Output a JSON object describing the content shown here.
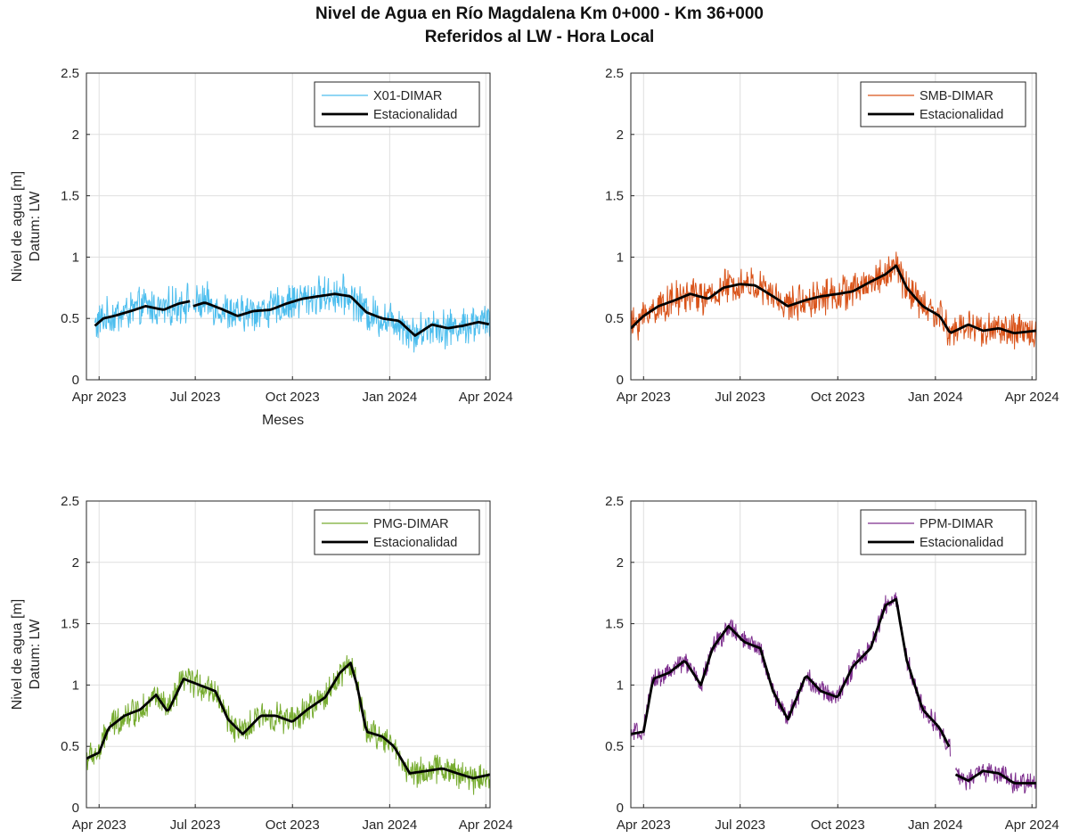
{
  "figure": {
    "title_line1": "Nivel de Agua en Río Magdalena Km 0+000 - Km 36+000",
    "title_line2": "Referidos al LW - Hora Local",
    "colors": {
      "X01": "#4dbeee",
      "SMB": "#d95319",
      "PMG": "#77ac30",
      "PPM": "#7e2f8e",
      "seasonal": "#000000"
    }
  },
  "chart_data": [
    {
      "type": "line",
      "ylabel": "Nivel de agua [m]",
      "ylabel2": "Datum: LW",
      "xlabel": "Meses",
      "x_ticks": [
        "Apr 2023",
        "Jul 2023",
        "Oct 2023",
        "Jan 2024",
        "Apr 2024"
      ],
      "x_tick_dates": [
        "2023-04-01",
        "2023-07-01",
        "2023-10-01",
        "2024-01-01",
        "2024-04-01"
      ],
      "xlim": [
        "2023-03-20",
        "2024-04-05"
      ],
      "y_ticks": [
        "0",
        "0.5",
        "1",
        "1.5",
        "2",
        "2.5"
      ],
      "ylim": [
        0,
        2.5
      ],
      "grid": true,
      "legend_position": "top-right",
      "series": [
        {
          "name": "X01-DIMAR",
          "color": "#4dbeee",
          "band": 0.13,
          "x": [
            "2023-03-28",
            "2023-04-05",
            "2023-04-15",
            "2023-05-01",
            "2023-05-15",
            "2023-06-01",
            "2023-06-15",
            "2023-06-26"
          ],
          "y": [
            0.44,
            0.5,
            0.52,
            0.56,
            0.6,
            0.57,
            0.62,
            0.64
          ],
          "x2": [
            "2023-06-29",
            "2023-07-10",
            "2023-07-25",
            "2023-08-10",
            "2023-08-25",
            "2023-09-10",
            "2023-09-25",
            "2023-10-10",
            "2023-10-25",
            "2023-11-10",
            "2023-11-25",
            "2023-12-10",
            "2023-12-25",
            "2024-01-10",
            "2024-01-25",
            "2024-02-10",
            "2024-02-25",
            "2024-03-10",
            "2024-03-25",
            "2024-04-05"
          ],
          "y2": [
            0.6,
            0.63,
            0.58,
            0.52,
            0.56,
            0.57,
            0.62,
            0.66,
            0.68,
            0.7,
            0.68,
            0.55,
            0.5,
            0.48,
            0.36,
            0.45,
            0.42,
            0.44,
            0.47,
            0.45
          ]
        },
        {
          "name": "Estacionalidad",
          "color": "#000000",
          "x": [
            "2023-03-28",
            "2023-04-05",
            "2023-04-15",
            "2023-05-01",
            "2023-05-15",
            "2023-06-01",
            "2023-06-15",
            "2023-06-26"
          ],
          "y": [
            0.44,
            0.5,
            0.52,
            0.56,
            0.6,
            0.57,
            0.62,
            0.64
          ],
          "x2": [
            "2023-06-29",
            "2023-07-10",
            "2023-07-25",
            "2023-08-10",
            "2023-08-25",
            "2023-09-10",
            "2023-09-25",
            "2023-10-10",
            "2023-10-25",
            "2023-11-10",
            "2023-11-25",
            "2023-12-10",
            "2023-12-25",
            "2024-01-10",
            "2024-01-25",
            "2024-02-10",
            "2024-02-25",
            "2024-03-10",
            "2024-03-25",
            "2024-04-05"
          ],
          "y2": [
            0.6,
            0.63,
            0.58,
            0.52,
            0.56,
            0.57,
            0.62,
            0.66,
            0.68,
            0.7,
            0.68,
            0.55,
            0.5,
            0.48,
            0.36,
            0.45,
            0.42,
            0.44,
            0.47,
            0.45
          ]
        }
      ]
    },
    {
      "type": "line",
      "ylabel": "",
      "ylabel2": "",
      "xlabel": "",
      "x_ticks": [
        "Apr 2023",
        "Jul 2023",
        "Oct 2023",
        "Jan 2024",
        "Apr 2024"
      ],
      "x_tick_dates": [
        "2023-04-01",
        "2023-07-01",
        "2023-10-01",
        "2024-01-01",
        "2024-04-01"
      ],
      "xlim": [
        "2023-03-20",
        "2024-04-05"
      ],
      "y_ticks": [
        "0",
        "0.5",
        "1",
        "1.5",
        "2",
        "2.5"
      ],
      "ylim": [
        0,
        2.5
      ],
      "grid": true,
      "legend_position": "top-right",
      "series": [
        {
          "name": "SMB-DIMAR",
          "color": "#d95319",
          "band": 0.12,
          "x": [
            "2023-03-20",
            "2023-04-01",
            "2023-04-15",
            "2023-05-01",
            "2023-05-15",
            "2023-06-01",
            "2023-06-15",
            "2023-07-01",
            "2023-07-15",
            "2023-08-01",
            "2023-08-15",
            "2023-09-01",
            "2023-09-15",
            "2023-10-01",
            "2023-10-15",
            "2023-11-01",
            "2023-11-15",
            "2023-11-25",
            "2023-12-05",
            "2023-12-20",
            "2024-01-05",
            "2024-01-15",
            "2024-02-01",
            "2024-02-15",
            "2024-03-01",
            "2024-03-15",
            "2024-04-05"
          ],
          "y": [
            0.42,
            0.52,
            0.6,
            0.65,
            0.7,
            0.66,
            0.75,
            0.78,
            0.77,
            0.68,
            0.6,
            0.65,
            0.68,
            0.7,
            0.72,
            0.8,
            0.86,
            0.93,
            0.75,
            0.6,
            0.52,
            0.38,
            0.45,
            0.4,
            0.42,
            0.38,
            0.4
          ]
        },
        {
          "name": "Estacionalidad",
          "color": "#000000",
          "x": [
            "2023-03-20",
            "2023-04-01",
            "2023-04-15",
            "2023-05-01",
            "2023-05-15",
            "2023-06-01",
            "2023-06-15",
            "2023-07-01",
            "2023-07-15",
            "2023-08-01",
            "2023-08-15",
            "2023-09-01",
            "2023-09-15",
            "2023-10-01",
            "2023-10-15",
            "2023-11-01",
            "2023-11-15",
            "2023-11-25",
            "2023-12-05",
            "2023-12-20",
            "2024-01-05",
            "2024-01-15",
            "2024-02-01",
            "2024-02-15",
            "2024-03-01",
            "2024-03-15",
            "2024-04-05"
          ],
          "y": [
            0.42,
            0.52,
            0.6,
            0.65,
            0.7,
            0.66,
            0.75,
            0.78,
            0.77,
            0.68,
            0.6,
            0.65,
            0.68,
            0.7,
            0.72,
            0.8,
            0.86,
            0.93,
            0.75,
            0.6,
            0.52,
            0.38,
            0.45,
            0.4,
            0.42,
            0.38,
            0.4
          ]
        }
      ]
    },
    {
      "type": "line",
      "ylabel": "Nivel de agua [m]",
      "ylabel2": "Datum: LW",
      "xlabel": "",
      "x_ticks": [
        "Apr 2023",
        "Jul 2023",
        "Oct 2023",
        "Jan 2024",
        "Apr 2024"
      ],
      "x_tick_dates": [
        "2023-04-01",
        "2023-07-01",
        "2023-10-01",
        "2024-01-01",
        "2024-04-01"
      ],
      "xlim": [
        "2023-03-20",
        "2024-04-05"
      ],
      "y_ticks": [
        "0",
        "0.5",
        "1",
        "1.5",
        "2",
        "2.5"
      ],
      "ylim": [
        0,
        2.5
      ],
      "grid": true,
      "legend_position": "top-right",
      "series": [
        {
          "name": "PMG-DIMAR",
          "color": "#77ac30",
          "band": 0.1,
          "x": [
            "2023-03-20",
            "2023-04-01",
            "2023-04-10",
            "2023-04-25",
            "2023-05-10",
            "2023-05-25",
            "2023-06-05",
            "2023-06-20",
            "2023-07-05",
            "2023-07-20",
            "2023-08-01",
            "2023-08-15",
            "2023-09-01",
            "2023-09-15",
            "2023-10-01",
            "2023-10-15",
            "2023-11-01",
            "2023-11-15",
            "2023-11-25",
            "2023-12-01",
            "2023-12-10",
            "2023-12-25",
            "2024-01-05",
            "2024-01-20",
            "2024-02-05",
            "2024-02-20",
            "2024-03-05",
            "2024-03-20",
            "2024-04-05"
          ],
          "y": [
            0.4,
            0.45,
            0.65,
            0.75,
            0.8,
            0.92,
            0.78,
            1.05,
            1.0,
            0.95,
            0.72,
            0.6,
            0.75,
            0.75,
            0.7,
            0.8,
            0.9,
            1.1,
            1.18,
            1.0,
            0.62,
            0.58,
            0.5,
            0.28,
            0.3,
            0.32,
            0.28,
            0.24,
            0.27
          ]
        },
        {
          "name": "Estacionalidad",
          "color": "#000000",
          "x": [
            "2023-03-20",
            "2023-04-01",
            "2023-04-10",
            "2023-04-25",
            "2023-05-10",
            "2023-05-25",
            "2023-06-05",
            "2023-06-20",
            "2023-07-05",
            "2023-07-20",
            "2023-08-01",
            "2023-08-15",
            "2023-09-01",
            "2023-09-15",
            "2023-10-01",
            "2023-10-15",
            "2023-11-01",
            "2023-11-15",
            "2023-11-25",
            "2023-12-01",
            "2023-12-10",
            "2023-12-25",
            "2024-01-05",
            "2024-01-20",
            "2024-02-05",
            "2024-02-20",
            "2024-03-05",
            "2024-03-20",
            "2024-04-05"
          ],
          "y": [
            0.4,
            0.45,
            0.65,
            0.75,
            0.8,
            0.92,
            0.78,
            1.05,
            1.0,
            0.95,
            0.72,
            0.6,
            0.75,
            0.75,
            0.7,
            0.8,
            0.9,
            1.1,
            1.18,
            1.0,
            0.62,
            0.58,
            0.5,
            0.28,
            0.3,
            0.32,
            0.28,
            0.24,
            0.27
          ]
        }
      ]
    },
    {
      "type": "line",
      "ylabel": "",
      "ylabel2": "",
      "xlabel": "",
      "x_ticks": [
        "Apr 2023",
        "Jul 2023",
        "Oct 2023",
        "Jan 2024",
        "Apr 2024"
      ],
      "x_tick_dates": [
        "2023-04-01",
        "2023-07-01",
        "2023-10-01",
        "2024-01-01",
        "2024-04-01"
      ],
      "xlim": [
        "2023-03-20",
        "2024-04-05"
      ],
      "y_ticks": [
        "0",
        "0.5",
        "1",
        "1.5",
        "2",
        "2.5"
      ],
      "ylim": [
        0,
        2.5
      ],
      "grid": true,
      "legend_position": "top-right",
      "series": [
        {
          "name": "PPM-DIMAR",
          "color": "#7e2f8e",
          "band": 0.07,
          "x": [
            "2023-03-20",
            "2023-04-01",
            "2023-04-10",
            "2023-04-25",
            "2023-05-10",
            "2023-05-25",
            "2023-06-05",
            "2023-06-20",
            "2023-07-05",
            "2023-07-20",
            "2023-08-01",
            "2023-08-15",
            "2023-09-01",
            "2023-09-15",
            "2023-10-01",
            "2023-10-15",
            "2023-11-01",
            "2023-11-15",
            "2023-11-25",
            "2023-12-05",
            "2023-12-20",
            "2024-01-05",
            "2024-01-15"
          ],
          "y": [
            0.6,
            0.62,
            1.05,
            1.1,
            1.2,
            1.0,
            1.3,
            1.48,
            1.35,
            1.3,
            0.95,
            0.72,
            1.08,
            0.95,
            0.9,
            1.15,
            1.3,
            1.65,
            1.7,
            1.2,
            0.8,
            0.65,
            0.48
          ],
          "x2": [
            "2024-01-20",
            "2024-02-01",
            "2024-02-15",
            "2024-03-01",
            "2024-03-15",
            "2024-04-05"
          ],
          "y2": [
            0.27,
            0.22,
            0.3,
            0.28,
            0.2,
            0.2
          ]
        },
        {
          "name": "Estacionalidad",
          "color": "#000000",
          "x": [
            "2023-03-20",
            "2023-04-01",
            "2023-04-10",
            "2023-04-25",
            "2023-05-10",
            "2023-05-25",
            "2023-06-05",
            "2023-06-20",
            "2023-07-05",
            "2023-07-20",
            "2023-08-01",
            "2023-08-15",
            "2023-09-01",
            "2023-09-15",
            "2023-10-01",
            "2023-10-15",
            "2023-11-01",
            "2023-11-15",
            "2023-11-25",
            "2023-12-05",
            "2023-12-20",
            "2024-01-05",
            "2024-01-15"
          ],
          "y": [
            0.6,
            0.62,
            1.05,
            1.1,
            1.2,
            1.0,
            1.3,
            1.48,
            1.35,
            1.3,
            0.95,
            0.72,
            1.08,
            0.95,
            0.9,
            1.15,
            1.3,
            1.65,
            1.7,
            1.2,
            0.8,
            0.65,
            0.48
          ],
          "x2": [
            "2024-01-20",
            "2024-02-01",
            "2024-02-15",
            "2024-03-01",
            "2024-03-15",
            "2024-04-05"
          ],
          "y2": [
            0.27,
            0.22,
            0.3,
            0.28,
            0.2,
            0.2
          ]
        }
      ]
    }
  ]
}
